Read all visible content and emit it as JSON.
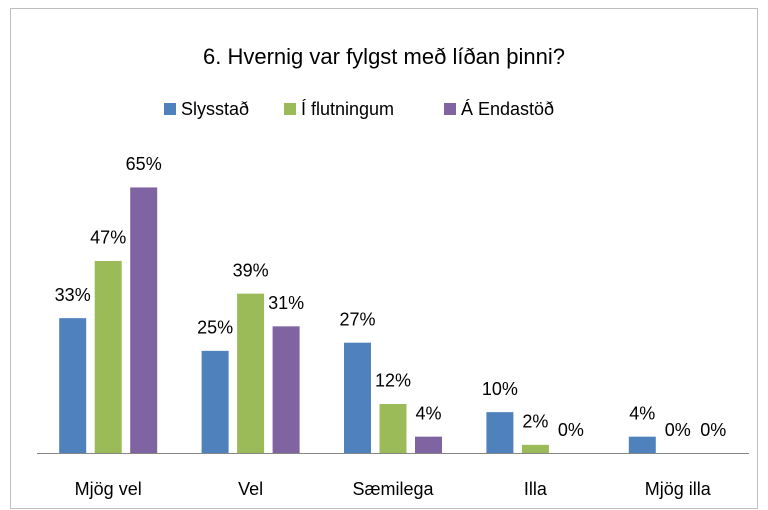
{
  "chart_data": {
    "type": "bar",
    "title": "6. Hvernig var fylgst með líðan þinni?",
    "categories": [
      "Mjög vel",
      "Vel",
      "Sæmilega",
      "Illa",
      "Mjög illa"
    ],
    "series": [
      {
        "name": "Slysstað",
        "color": "#4f81bd",
        "values": [
          33,
          25,
          27,
          10,
          4
        ],
        "value_labels": [
          "33%",
          "25%",
          "27%",
          "10%",
          "4%"
        ]
      },
      {
        "name": "Í flutningum",
        "color": "#9bbb59",
        "values": [
          47,
          39,
          12,
          2,
          0
        ],
        "value_labels": [
          "47%",
          "39%",
          "12%",
          "2%",
          "0%"
        ]
      },
      {
        "name": "Á Endastöð",
        "color": "#8064a2",
        "values": [
          65,
          31,
          4,
          0,
          0
        ],
        "value_labels": [
          "65%",
          "31%",
          "4%",
          "0%",
          "0%"
        ]
      }
    ],
    "ylim": [
      0,
      70
    ],
    "legend": "top"
  }
}
